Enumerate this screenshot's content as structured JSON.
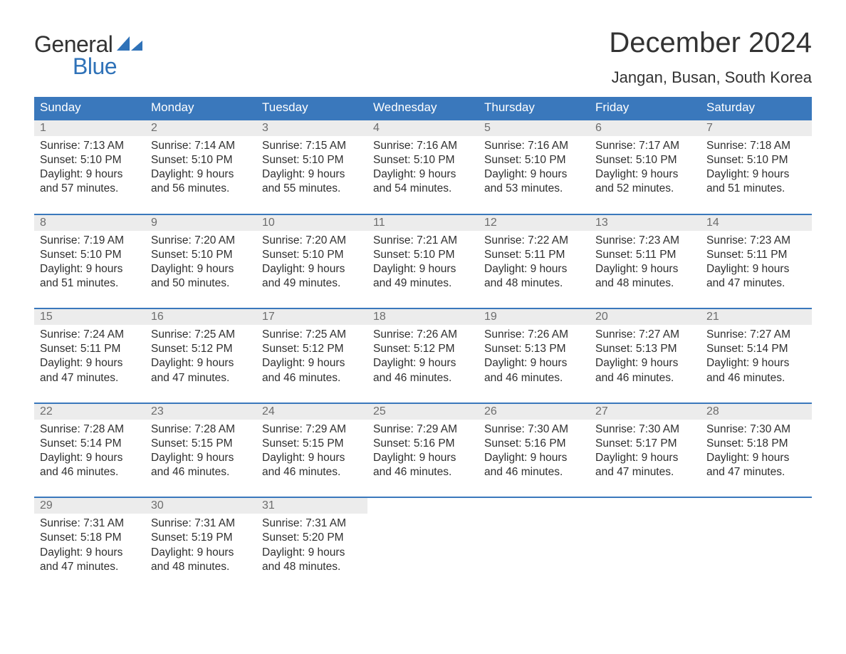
{
  "brand": {
    "general": "General",
    "blue": "Blue"
  },
  "title": "December 2024",
  "location": "Jangan, Busan, South Korea",
  "colors": {
    "header_bg": "#3a78bc",
    "header_text": "#ffffff",
    "week_border": "#3a78bc",
    "daynum_bg": "#ececec",
    "daynum_text": "#6d6d6d",
    "body_text": "#2f2f2f",
    "logo_blue": "#2f72b8",
    "title_text": "#333333"
  },
  "dow": [
    "Sunday",
    "Monday",
    "Tuesday",
    "Wednesday",
    "Thursday",
    "Friday",
    "Saturday"
  ],
  "weeks": [
    [
      {
        "n": "1",
        "sr": "7:13 AM",
        "ss": "5:10 PM",
        "dl": "9 hours",
        "dm": "and 57 minutes."
      },
      {
        "n": "2",
        "sr": "7:14 AM",
        "ss": "5:10 PM",
        "dl": "9 hours",
        "dm": "and 56 minutes."
      },
      {
        "n": "3",
        "sr": "7:15 AM",
        "ss": "5:10 PM",
        "dl": "9 hours",
        "dm": "and 55 minutes."
      },
      {
        "n": "4",
        "sr": "7:16 AM",
        "ss": "5:10 PM",
        "dl": "9 hours",
        "dm": "and 54 minutes."
      },
      {
        "n": "5",
        "sr": "7:16 AM",
        "ss": "5:10 PM",
        "dl": "9 hours",
        "dm": "and 53 minutes."
      },
      {
        "n": "6",
        "sr": "7:17 AM",
        "ss": "5:10 PM",
        "dl": "9 hours",
        "dm": "and 52 minutes."
      },
      {
        "n": "7",
        "sr": "7:18 AM",
        "ss": "5:10 PM",
        "dl": "9 hours",
        "dm": "and 51 minutes."
      }
    ],
    [
      {
        "n": "8",
        "sr": "7:19 AM",
        "ss": "5:10 PM",
        "dl": "9 hours",
        "dm": "and 51 minutes."
      },
      {
        "n": "9",
        "sr": "7:20 AM",
        "ss": "5:10 PM",
        "dl": "9 hours",
        "dm": "and 50 minutes."
      },
      {
        "n": "10",
        "sr": "7:20 AM",
        "ss": "5:10 PM",
        "dl": "9 hours",
        "dm": "and 49 minutes."
      },
      {
        "n": "11",
        "sr": "7:21 AM",
        "ss": "5:10 PM",
        "dl": "9 hours",
        "dm": "and 49 minutes."
      },
      {
        "n": "12",
        "sr": "7:22 AM",
        "ss": "5:11 PM",
        "dl": "9 hours",
        "dm": "and 48 minutes."
      },
      {
        "n": "13",
        "sr": "7:23 AM",
        "ss": "5:11 PM",
        "dl": "9 hours",
        "dm": "and 48 minutes."
      },
      {
        "n": "14",
        "sr": "7:23 AM",
        "ss": "5:11 PM",
        "dl": "9 hours",
        "dm": "and 47 minutes."
      }
    ],
    [
      {
        "n": "15",
        "sr": "7:24 AM",
        "ss": "5:11 PM",
        "dl": "9 hours",
        "dm": "and 47 minutes."
      },
      {
        "n": "16",
        "sr": "7:25 AM",
        "ss": "5:12 PM",
        "dl": "9 hours",
        "dm": "and 47 minutes."
      },
      {
        "n": "17",
        "sr": "7:25 AM",
        "ss": "5:12 PM",
        "dl": "9 hours",
        "dm": "and 46 minutes."
      },
      {
        "n": "18",
        "sr": "7:26 AM",
        "ss": "5:12 PM",
        "dl": "9 hours",
        "dm": "and 46 minutes."
      },
      {
        "n": "19",
        "sr": "7:26 AM",
        "ss": "5:13 PM",
        "dl": "9 hours",
        "dm": "and 46 minutes."
      },
      {
        "n": "20",
        "sr": "7:27 AM",
        "ss": "5:13 PM",
        "dl": "9 hours",
        "dm": "and 46 minutes."
      },
      {
        "n": "21",
        "sr": "7:27 AM",
        "ss": "5:14 PM",
        "dl": "9 hours",
        "dm": "and 46 minutes."
      }
    ],
    [
      {
        "n": "22",
        "sr": "7:28 AM",
        "ss": "5:14 PM",
        "dl": "9 hours",
        "dm": "and 46 minutes."
      },
      {
        "n": "23",
        "sr": "7:28 AM",
        "ss": "5:15 PM",
        "dl": "9 hours",
        "dm": "and 46 minutes."
      },
      {
        "n": "24",
        "sr": "7:29 AM",
        "ss": "5:15 PM",
        "dl": "9 hours",
        "dm": "and 46 minutes."
      },
      {
        "n": "25",
        "sr": "7:29 AM",
        "ss": "5:16 PM",
        "dl": "9 hours",
        "dm": "and 46 minutes."
      },
      {
        "n": "26",
        "sr": "7:30 AM",
        "ss": "5:16 PM",
        "dl": "9 hours",
        "dm": "and 46 minutes."
      },
      {
        "n": "27",
        "sr": "7:30 AM",
        "ss": "5:17 PM",
        "dl": "9 hours",
        "dm": "and 47 minutes."
      },
      {
        "n": "28",
        "sr": "7:30 AM",
        "ss": "5:18 PM",
        "dl": "9 hours",
        "dm": "and 47 minutes."
      }
    ],
    [
      {
        "n": "29",
        "sr": "7:31 AM",
        "ss": "5:18 PM",
        "dl": "9 hours",
        "dm": "and 47 minutes."
      },
      {
        "n": "30",
        "sr": "7:31 AM",
        "ss": "5:19 PM",
        "dl": "9 hours",
        "dm": "and 48 minutes."
      },
      {
        "n": "31",
        "sr": "7:31 AM",
        "ss": "5:20 PM",
        "dl": "9 hours",
        "dm": "and 48 minutes."
      },
      {
        "empty": true
      },
      {
        "empty": true
      },
      {
        "empty": true
      },
      {
        "empty": true
      }
    ]
  ],
  "labels": {
    "sunrise": "Sunrise: ",
    "sunset": "Sunset: ",
    "daylight": "Daylight: "
  }
}
